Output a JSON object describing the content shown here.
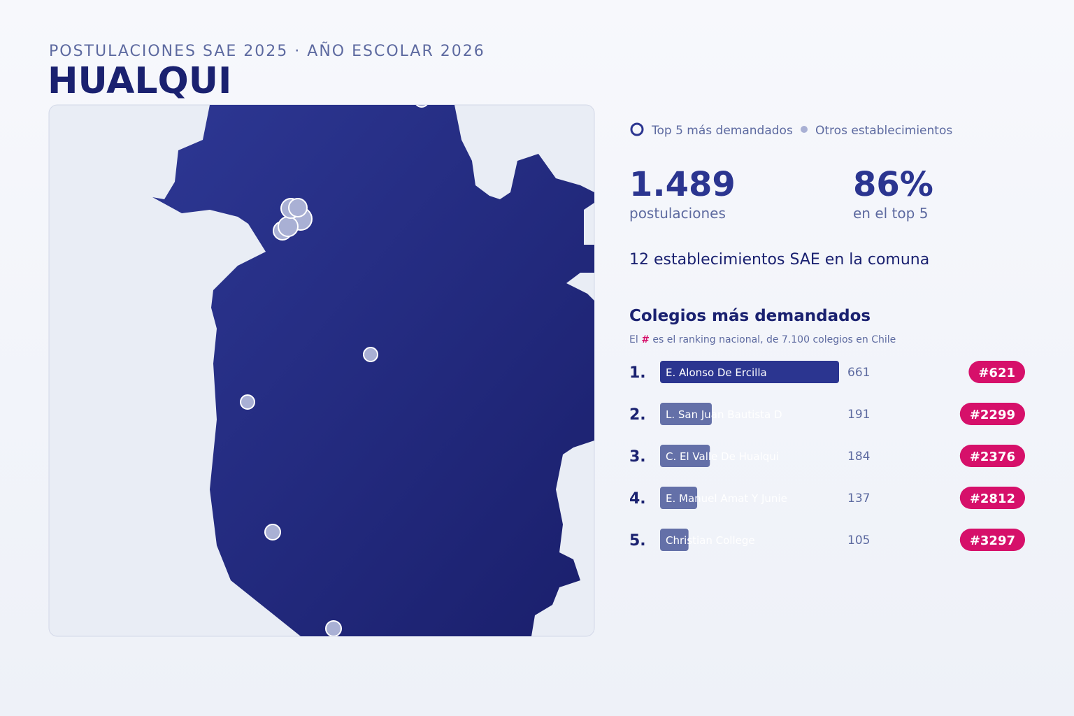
{
  "header": {
    "subtitle": "POSTULACIONES SAE 2025 · AÑO ESCOLAR 2026",
    "title": "HUALQUI"
  },
  "legend": {
    "top5": "Top 5 más demandados",
    "others": "Otros establecimientos"
  },
  "stats": [
    {
      "value": "1.489",
      "label": "postulaciones"
    },
    {
      "value": "86%",
      "label": "en el top 5"
    }
  ],
  "note": "12 establecimientos SAE en la comuna",
  "ranking": {
    "title": "Colegios más demandados",
    "subtitle_start": "El",
    "subtitle_hash": "#",
    "subtitle_end": "es el ranking nacional, de 7.100 colegios en Chile",
    "rows": [
      {
        "rank": "1.",
        "name": "E. Alonso De Ercilla",
        "value": 661,
        "badge": "#621"
      },
      {
        "rank": "2.",
        "name": "L. San Juan Bautista D",
        "value": 191,
        "badge": "#2299"
      },
      {
        "rank": "3.",
        "name": "C. El Valle De Hualqui",
        "value": 184,
        "badge": "#2376"
      },
      {
        "rank": "4.",
        "name": "E. Manuel Amat Y Junie",
        "value": 137,
        "badge": "#2812"
      },
      {
        "rank": "5.",
        "name": "Christian College",
        "value": 105,
        "badge": "#3297"
      }
    ]
  }
}
